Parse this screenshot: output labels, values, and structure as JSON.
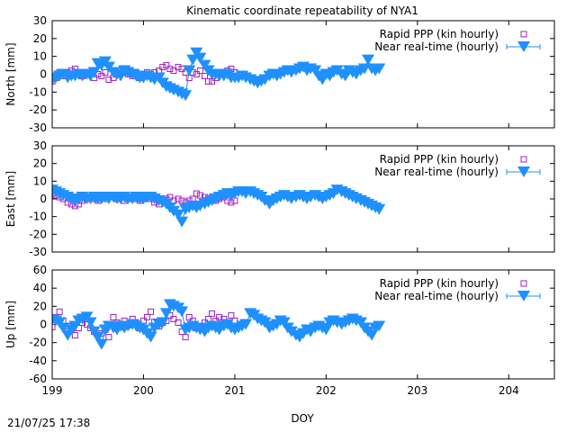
{
  "title": "Kinematic coordinate repeatability of NYA1",
  "timestamp": "21/07/25 17:38",
  "colors": {
    "rapid": "#a020c0",
    "nrt": "#1e90ff"
  },
  "chart_data": {
    "type": "scatter",
    "xlabel": "DOY",
    "xlim": [
      199,
      204.5
    ],
    "xticks": [
      199,
      200,
      201,
      202,
      203,
      204
    ],
    "legend_position": "top-right",
    "legend": [
      "Rapid PPP (kin hourly)",
      "Near real-time (hourly)"
    ],
    "panels": [
      {
        "ylabel": "North [mm]",
        "ylim": [
          -30,
          30
        ],
        "yticks": [
          -30,
          -20,
          -10,
          0,
          10,
          20,
          30
        ],
        "series": [
          {
            "name": "Rapid PPP (kin hourly)",
            "marker": "open-square",
            "x": [
              199.0,
              199.04,
              199.08,
              199.12,
              199.17,
              199.21,
              199.25,
              199.29,
              199.33,
              199.38,
              199.42,
              199.46,
              199.5,
              199.54,
              199.58,
              199.62,
              199.67,
              199.71,
              199.75,
              199.79,
              199.83,
              199.88,
              199.92,
              199.96,
              200.0,
              200.04,
              200.08,
              200.12,
              200.17,
              200.21,
              200.25,
              200.29,
              200.33,
              200.38,
              200.42,
              200.46,
              200.5,
              200.54,
              200.58,
              200.62,
              200.67,
              200.71,
              200.75,
              200.79,
              200.83,
              200.88,
              200.92,
              200.96,
              201.0
            ],
            "y": [
              -4,
              -2,
              1,
              -1,
              1,
              2,
              3,
              1,
              -1,
              0,
              1,
              -2,
              0,
              -1,
              1,
              -3,
              -2,
              0,
              2,
              1,
              0,
              -1,
              1,
              -2,
              0,
              1,
              0,
              1,
              2,
              4,
              5,
              3,
              2,
              4,
              3,
              1,
              -2,
              1,
              0,
              2,
              -1,
              -4,
              -4,
              -2,
              0,
              1,
              2,
              3,
              1
            ]
          },
          {
            "name": "Near real-time (hourly)",
            "marker": "filled-triangle-down",
            "x": [
              199.0,
              199.04,
              199.08,
              199.12,
              199.17,
              199.21,
              199.25,
              199.29,
              199.33,
              199.38,
              199.42,
              199.46,
              199.5,
              199.54,
              199.58,
              199.62,
              199.67,
              199.71,
              199.75,
              199.79,
              199.83,
              199.88,
              199.92,
              199.96,
              200.0,
              200.04,
              200.08,
              200.12,
              200.17,
              200.21,
              200.25,
              200.29,
              200.33,
              200.38,
              200.42,
              200.46,
              200.5,
              200.54,
              200.58,
              200.62,
              200.67,
              200.71,
              200.75,
              200.79,
              200.83,
              200.88,
              200.92,
              200.96,
              201.0,
              201.04,
              201.08,
              201.12,
              201.17,
              201.21,
              201.25,
              201.29,
              201.33,
              201.38,
              201.42,
              201.46,
              201.5,
              201.54,
              201.58,
              201.62,
              201.67,
              201.71,
              201.75,
              201.79,
              201.83,
              201.88,
              201.92,
              201.96,
              202.0,
              202.04,
              202.08,
              202.12,
              202.17,
              202.21,
              202.25,
              202.29,
              202.33,
              202.38,
              202.42,
              202.46,
              202.5,
              202.54,
              202.58
            ],
            "y": [
              -3,
              -2,
              -1,
              0,
              -2,
              -1,
              -1,
              0,
              -1,
              0,
              -1,
              1,
              6,
              5,
              7,
              4,
              1,
              0,
              -1,
              2,
              1,
              0,
              -1,
              -2,
              -2,
              -1,
              -2,
              -3,
              -2,
              -5,
              -7,
              -8,
              -9,
              -10,
              -11,
              -12,
              2,
              8,
              12,
              9,
              5,
              2,
              0,
              0,
              -1,
              -1,
              0,
              -2,
              -2,
              -2,
              -1,
              -2,
              -3,
              -4,
              -5,
              -4,
              -3,
              -1,
              0,
              -1,
              0,
              1,
              2,
              1,
              2,
              3,
              4,
              2,
              3,
              2,
              -1,
              -3,
              0,
              -1,
              1,
              2,
              0,
              -1,
              2,
              1,
              0,
              2,
              3,
              8,
              3,
              2,
              3
            ]
          }
        ]
      },
      {
        "ylabel": "East [mm]",
        "ylim": [
          -30,
          30
        ],
        "yticks": [
          -30,
          -20,
          -10,
          0,
          10,
          20,
          30
        ],
        "series": [
          {
            "name": "Rapid PPP (kin hourly)",
            "marker": "open-square",
            "x": [
              199.0,
              199.04,
              199.08,
              199.12,
              199.17,
              199.21,
              199.25,
              199.29,
              199.33,
              199.38,
              199.42,
              199.46,
              199.5,
              199.54,
              199.58,
              199.62,
              199.67,
              199.71,
              199.75,
              199.79,
              199.83,
              199.88,
              199.92,
              199.96,
              200.0,
              200.04,
              200.08,
              200.12,
              200.17,
              200.21,
              200.25,
              200.29,
              200.33,
              200.38,
              200.42,
              200.46,
              200.5,
              200.54,
              200.58,
              200.62,
              200.67,
              200.71,
              200.75,
              200.79,
              200.83,
              200.88,
              200.92,
              200.96,
              201.0
            ],
            "y": [
              3,
              2,
              1,
              0,
              -2,
              -3,
              -4,
              -3,
              -1,
              0,
              1,
              0,
              -1,
              1,
              0,
              2,
              1,
              0,
              1,
              -1,
              0,
              1,
              0,
              -1,
              0,
              1,
              0,
              -2,
              -3,
              -1,
              0,
              1,
              -1,
              0,
              -1,
              -2,
              -1,
              0,
              3,
              2,
              1,
              0,
              1,
              -1,
              0,
              1,
              -1,
              -2,
              -1
            ]
          },
          {
            "name": "Near real-time (hourly)",
            "marker": "filled-triangle-down",
            "x": [
              199.0,
              199.04,
              199.08,
              199.12,
              199.17,
              199.21,
              199.25,
              199.29,
              199.33,
              199.38,
              199.42,
              199.46,
              199.5,
              199.54,
              199.58,
              199.62,
              199.67,
              199.71,
              199.75,
              199.79,
              199.83,
              199.88,
              199.92,
              199.96,
              200.0,
              200.04,
              200.08,
              200.12,
              200.17,
              200.21,
              200.25,
              200.29,
              200.33,
              200.38,
              200.42,
              200.46,
              200.5,
              200.54,
              200.58,
              200.62,
              200.67,
              200.71,
              200.75,
              200.79,
              200.83,
              200.88,
              200.92,
              200.96,
              201.0,
              201.04,
              201.08,
              201.12,
              201.17,
              201.21,
              201.25,
              201.29,
              201.33,
              201.38,
              201.42,
              201.46,
              201.5,
              201.54,
              201.58,
              201.62,
              201.67,
              201.71,
              201.75,
              201.79,
              201.83,
              201.88,
              201.92,
              201.96,
              202.0,
              202.04,
              202.08,
              202.12,
              202.17,
              202.21,
              202.25,
              202.29,
              202.33,
              202.38,
              202.42,
              202.46,
              202.5,
              202.54,
              202.58
            ],
            "y": [
              5,
              4,
              3,
              2,
              1,
              0,
              -1,
              0,
              1,
              0,
              0,
              1,
              0,
              0,
              1,
              0,
              1,
              0,
              0,
              1,
              0,
              0,
              1,
              0,
              0,
              1,
              1,
              0,
              -1,
              -2,
              -3,
              -5,
              -7,
              -9,
              -13,
              -6,
              -5,
              -4,
              -5,
              -4,
              -3,
              -2,
              -1,
              0,
              1,
              2,
              3,
              2,
              3,
              4,
              4,
              3,
              4,
              3,
              2,
              1,
              -1,
              -3,
              -1,
              0,
              1,
              2,
              1,
              0,
              1,
              2,
              1,
              0,
              1,
              2,
              1,
              0,
              1,
              2,
              3,
              5,
              4,
              3,
              2,
              1,
              0,
              -1,
              -2,
              -3,
              -4,
              -5,
              -6
            ]
          }
        ]
      },
      {
        "ylabel": "Up [mm]",
        "ylim": [
          -60,
          60
        ],
        "yticks": [
          -60,
          -40,
          -20,
          0,
          20,
          40,
          60
        ],
        "series": [
          {
            "name": "Rapid PPP (kin hourly)",
            "marker": "open-square",
            "x": [
              199.0,
              199.04,
              199.08,
              199.12,
              199.17,
              199.21,
              199.25,
              199.29,
              199.33,
              199.38,
              199.42,
              199.46,
              199.5,
              199.54,
              199.58,
              199.62,
              199.67,
              199.71,
              199.75,
              199.79,
              199.83,
              199.88,
              199.92,
              199.96,
              200.0,
              200.04,
              200.08,
              200.12,
              200.17,
              200.21,
              200.25,
              200.29,
              200.33,
              200.38,
              200.42,
              200.46,
              200.5,
              200.54,
              200.58,
              200.62,
              200.67,
              200.71,
              200.75,
              200.79,
              200.83,
              200.88,
              200.92,
              200.96,
              201.0
            ],
            "y": [
              -3,
              8,
              14,
              4,
              -2,
              -6,
              -12,
              -4,
              2,
              0,
              -4,
              -8,
              -12,
              -10,
              -6,
              -14,
              8,
              2,
              -3,
              4,
              -1,
              6,
              2,
              -4,
              4,
              8,
              14,
              3,
              -2,
              2,
              4,
              10,
              6,
              2,
              -8,
              -14,
              8,
              4,
              -4,
              -2,
              2,
              6,
              12,
              4,
              8,
              6,
              2,
              10,
              4
            ]
          },
          {
            "name": "Near real-time (hourly)",
            "marker": "filled-triangle-down",
            "x": [
              199.0,
              199.04,
              199.08,
              199.12,
              199.17,
              199.21,
              199.25,
              199.29,
              199.33,
              199.38,
              199.42,
              199.46,
              199.5,
              199.54,
              199.58,
              199.62,
              199.67,
              199.71,
              199.75,
              199.79,
              199.83,
              199.88,
              199.92,
              199.96,
              200.0,
              200.04,
              200.08,
              200.12,
              200.17,
              200.21,
              200.25,
              200.29,
              200.33,
              200.38,
              200.42,
              200.46,
              200.5,
              200.54,
              200.58,
              200.62,
              200.67,
              200.71,
              200.75,
              200.79,
              200.83,
              200.88,
              200.92,
              200.96,
              201.0,
              201.04,
              201.08,
              201.12,
              201.17,
              201.21,
              201.25,
              201.29,
              201.33,
              201.38,
              201.42,
              201.46,
              201.5,
              201.54,
              201.58,
              201.62,
              201.67,
              201.71,
              201.75,
              201.79,
              201.83,
              201.88,
              201.92,
              201.96,
              202.0,
              202.04,
              202.08,
              202.12,
              202.17,
              202.21,
              202.25,
              202.29,
              202.33,
              202.38,
              202.42,
              202.46,
              202.5,
              202.54,
              202.58
            ],
            "y": [
              5,
              4,
              2,
              -4,
              -12,
              -6,
              -2,
              4,
              6,
              8,
              2,
              -8,
              -14,
              -22,
              -6,
              -2,
              -4,
              -6,
              -2,
              -4,
              -2,
              0,
              -2,
              -4,
              -6,
              -10,
              -14,
              -4,
              0,
              2,
              12,
              22,
              20,
              18,
              14,
              -6,
              -4,
              -2,
              -4,
              -6,
              -8,
              -4,
              -2,
              -4,
              -6,
              -2,
              0,
              -4,
              -6,
              -4,
              -2,
              0,
              12,
              10,
              6,
              4,
              2,
              -4,
              -2,
              0,
              4,
              2,
              -4,
              -8,
              -12,
              -14,
              -10,
              -6,
              -8,
              -4,
              -2,
              -4,
              -6,
              2,
              4,
              2,
              0,
              2,
              4,
              6,
              4,
              2,
              -4,
              -8,
              -12,
              -4,
              -2
            ]
          }
        ]
      }
    ]
  }
}
